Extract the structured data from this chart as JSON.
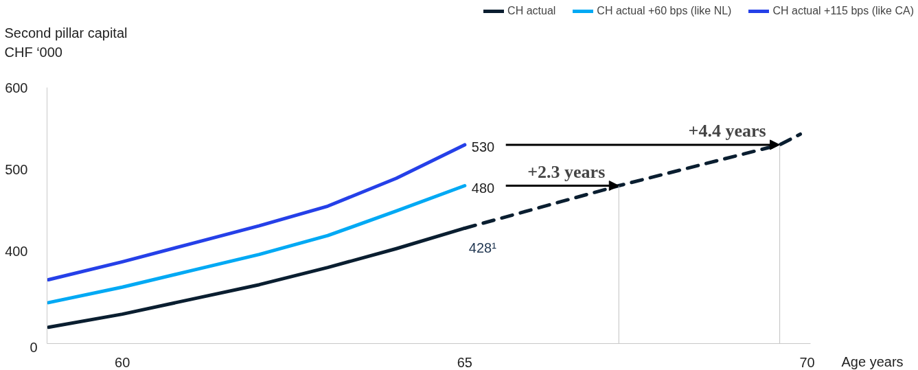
{
  "chart_data": {
    "type": "line",
    "ylabel": "Second pillar capital\nCHF ‘000",
    "xlabel": "Age years",
    "xlim": [
      58.9,
      70.05
    ],
    "xticks": [
      60,
      65,
      70
    ],
    "ylim": [
      287,
      600
    ],
    "yticks": [
      400,
      500,
      600
    ],
    "grid": false,
    "legend": "top right",
    "line_style": "solid",
    "marker": "none",
    "series": [
      {
        "name": "CH actual",
        "color": "#0a1e30",
        "x": [
          58.92,
          60,
          61,
          62,
          63,
          64,
          65
        ],
        "values": [
          307,
          323,
          341,
          359,
          380,
          403,
          428
        ]
      },
      {
        "name": "CH actual +60 bps (like NL)",
        "color": "#00a9f4",
        "x": [
          58.92,
          60,
          61,
          62,
          63,
          64,
          65
        ],
        "values": [
          337,
          356,
          376,
          396,
          419,
          449,
          480
        ]
      },
      {
        "name": "CH actual +115 bps (like CA)",
        "color": "#2540e8",
        "x": [
          58.92,
          60,
          61,
          62,
          63,
          64,
          65
        ],
        "values": [
          365,
          387,
          409,
          431,
          455,
          489,
          530
        ]
      },
      {
        "color": "#0a1e30",
        "line_style": "dashed",
        "x": [
          65,
          67.25,
          69.6,
          69.9
        ],
        "values": [
          428,
          480,
          530,
          543
        ]
      }
    ],
    "annotations": [
      "0",
      {
        "text": "530",
        "x": 65,
        "y": 530
      },
      {
        "text": "480",
        "x": 65,
        "y": 480
      },
      {
        "text": "428¹",
        "x": 65,
        "y": 428
      },
      {
        "text": "+2.3 years",
        "x": 67.25,
        "y": 480
      },
      {
        "text": "+4.4 years",
        "x": 69.6,
        "y": 530
      }
    ]
  }
}
